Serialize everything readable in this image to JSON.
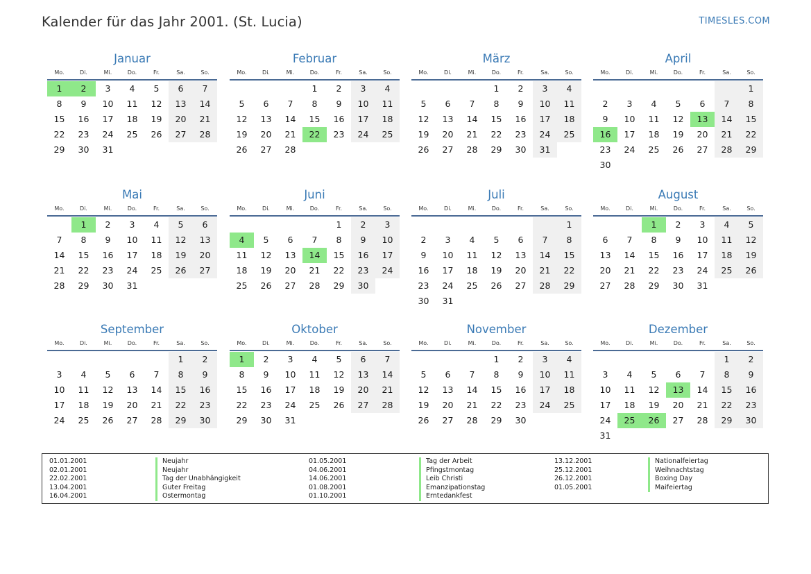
{
  "header": {
    "title": "Kalender für das Jahr 2001. (St. Lucia)",
    "brand": "TIMESLES.COM"
  },
  "weekdays": [
    "Mo.",
    "Di.",
    "Mi.",
    "Do.",
    "Fr.",
    "Sa.",
    "So."
  ],
  "colors": {
    "accent": "#3a7ab5",
    "holiday": "#8fe88a",
    "weekend": "#f0f0f0",
    "rule": "#4a6a94"
  },
  "months": [
    {
      "name": "Januar",
      "offset": 0,
      "days": 31,
      "holidays": [
        1,
        2
      ]
    },
    {
      "name": "Februar",
      "offset": 3,
      "days": 28,
      "holidays": [
        22
      ]
    },
    {
      "name": "März",
      "offset": 3,
      "days": 31,
      "holidays": []
    },
    {
      "name": "April",
      "offset": 6,
      "days": 30,
      "holidays": [
        13,
        16
      ]
    },
    {
      "name": "Mai",
      "offset": 1,
      "days": 31,
      "holidays": [
        1
      ]
    },
    {
      "name": "Juni",
      "offset": 4,
      "days": 30,
      "holidays": [
        4,
        14
      ]
    },
    {
      "name": "Juli",
      "offset": 6,
      "days": 31,
      "holidays": []
    },
    {
      "name": "August",
      "offset": 2,
      "days": 31,
      "holidays": [
        1
      ]
    },
    {
      "name": "September",
      "offset": 5,
      "days": 30,
      "holidays": []
    },
    {
      "name": "Oktober",
      "offset": 0,
      "days": 31,
      "holidays": [
        1
      ]
    },
    {
      "name": "November",
      "offset": 3,
      "days": 30,
      "holidays": []
    },
    {
      "name": "Dezember",
      "offset": 5,
      "days": 31,
      "holidays": [
        13,
        25,
        26
      ]
    }
  ],
  "holiday_list": [
    [
      {
        "date": "01.01.2001",
        "name": "Neujahr"
      },
      {
        "date": "02.01.2001",
        "name": "Neujahr"
      },
      {
        "date": "22.02.2001",
        "name": "Tag der Unabhängigkeit"
      },
      {
        "date": "13.04.2001",
        "name": "Guter Freitag"
      },
      {
        "date": "16.04.2001",
        "name": "Ostermontag"
      }
    ],
    [
      {
        "date": "01.05.2001",
        "name": "Tag der Arbeit"
      },
      {
        "date": "04.06.2001",
        "name": "Pfingstmontag"
      },
      {
        "date": "14.06.2001",
        "name": "Leib Christi"
      },
      {
        "date": "01.08.2001",
        "name": "Emanzipationstag"
      },
      {
        "date": "01.10.2001",
        "name": "Erntedankfest"
      }
    ],
    [
      {
        "date": "13.12.2001",
        "name": "Nationalfeiertag"
      },
      {
        "date": "25.12.2001",
        "name": "Weihnachtstag"
      },
      {
        "date": "26.12.2001",
        "name": "Boxing Day"
      },
      {
        "date": "01.05.2001",
        "name": "Maifeiertag"
      }
    ]
  ]
}
